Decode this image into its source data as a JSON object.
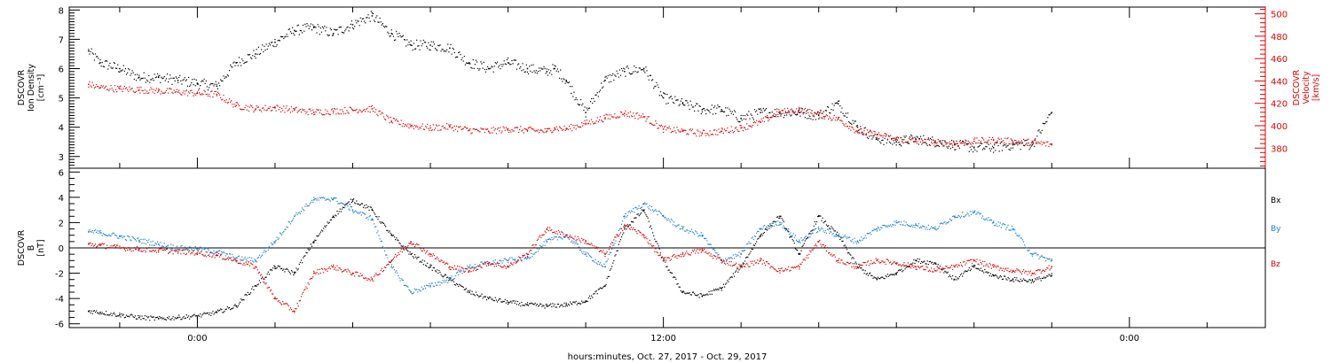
{
  "chart_data": [
    {
      "type": "scatter",
      "panel": "top",
      "left_axis": {
        "lines": [
          "DSCOVR",
          "Ion Density",
          "[cm⁻³]"
        ],
        "ticks": [
          3,
          4,
          5,
          6,
          7,
          8
        ],
        "ylim": [
          2.6,
          8.1
        ]
      },
      "right_axis": {
        "lines": [
          "DSCOVR",
          "Velocity",
          "[km/s]"
        ],
        "ticks": [
          380,
          400,
          420,
          440,
          460,
          480,
          500
        ],
        "ylim": [
          362,
          506
        ]
      },
      "series": [
        {
          "name": "",
          "axis": "left",
          "color": "#000000",
          "x": [
            -2.8,
            -2.5,
            -2.0,
            -1.5,
            -1.0,
            -0.5,
            0.0,
            0.5,
            1.0,
            1.5,
            2.0,
            2.5,
            3.0,
            3.5,
            4.0,
            4.5,
            5.0,
            5.5,
            6.0,
            6.5,
            7.0,
            7.5,
            8.0,
            8.5,
            9.0,
            9.2,
            9.5,
            10.0,
            10.5,
            11.0,
            11.5,
            12.0,
            12.5,
            13.0,
            13.5,
            14.0,
            14.5,
            15.0,
            15.5,
            16.0,
            16.5,
            17.0,
            17.5,
            18.0,
            18.5,
            19.0,
            19.5,
            20.0,
            20.5,
            21.0,
            21.5,
            22.0
          ],
          "y": [
            6.6,
            6.2,
            6.0,
            5.7,
            5.7,
            5.6,
            5.5,
            5.4,
            6.2,
            6.5,
            6.9,
            7.3,
            7.4,
            7.2,
            7.5,
            7.8,
            7.2,
            6.8,
            6.8,
            6.7,
            6.2,
            6.0,
            6.2,
            6.0,
            5.9,
            6.0,
            5.6,
            4.5,
            5.6,
            5.9,
            6.0,
            5.0,
            4.8,
            4.6,
            4.6,
            4.3,
            4.5,
            4.5,
            4.5,
            4.4,
            4.8,
            4.0,
            3.6,
            3.5,
            3.6,
            3.5,
            3.4,
            3.3,
            3.3,
            3.4,
            3.4,
            4.5
          ]
        },
        {
          "name": "",
          "axis": "right",
          "color": "#e00000",
          "x": [
            -2.8,
            -2.5,
            -2.0,
            -1.5,
            -1.0,
            -0.5,
            0.0,
            0.5,
            1.0,
            1.5,
            2.0,
            2.5,
            3.0,
            3.5,
            4.0,
            4.5,
            5.0,
            5.5,
            6.0,
            6.5,
            7.0,
            7.5,
            8.0,
            8.5,
            9.0,
            9.2,
            9.5,
            10.0,
            10.5,
            11.0,
            11.5,
            12.0,
            12.5,
            13.0,
            13.5,
            14.0,
            14.5,
            15.0,
            15.5,
            16.0,
            16.5,
            17.0,
            17.5,
            18.0,
            18.5,
            19.0,
            19.5,
            20.0,
            20.5,
            21.0,
            21.5,
            22.0
          ],
          "y": [
            437,
            434,
            433,
            432,
            431,
            430,
            429,
            428,
            418,
            415,
            416,
            414,
            412,
            413,
            414,
            415,
            404,
            400,
            398,
            399,
            396,
            395,
            397,
            396,
            395,
            398,
            397,
            402,
            407,
            411,
            408,
            397,
            395,
            393,
            395,
            398,
            403,
            412,
            414,
            410,
            406,
            395,
            392,
            388,
            386,
            385,
            384,
            386,
            387,
            386,
            385,
            383
          ]
        }
      ]
    },
    {
      "type": "scatter",
      "panel": "bottom",
      "left_axis": {
        "lines": [
          "DSCOVR",
          "B",
          "[nT]"
        ],
        "ticks": [
          -6,
          -4,
          -2,
          0,
          2,
          4,
          6
        ],
        "ylim": [
          -6.3,
          6.3
        ]
      },
      "zero_line": true,
      "series": [
        {
          "name": "Bx",
          "color": "#000000",
          "x": [
            -2.8,
            -2.5,
            -2.0,
            -1.5,
            -1.0,
            -0.5,
            0.0,
            0.5,
            1.0,
            1.5,
            2.0,
            2.5,
            3.0,
            3.5,
            4.0,
            4.5,
            5.0,
            5.5,
            6.0,
            6.5,
            7.0,
            7.5,
            8.0,
            8.5,
            9.0,
            9.5,
            10.0,
            10.5,
            11.0,
            11.5,
            12.0,
            12.5,
            13.0,
            13.5,
            14.0,
            14.5,
            15.0,
            15.5,
            16.0,
            16.5,
            17.0,
            17.5,
            18.0,
            18.5,
            19.0,
            19.5,
            20.0,
            20.5,
            21.0,
            21.5,
            22.0
          ],
          "y": [
            -5.0,
            -5.1,
            -5.3,
            -5.5,
            -5.6,
            -5.5,
            -5.4,
            -5.1,
            -4.6,
            -3.0,
            -1.5,
            -2.0,
            0.5,
            2.5,
            3.8,
            3.0,
            1.0,
            -0.5,
            -1.5,
            -2.5,
            -3.5,
            -4.0,
            -4.3,
            -4.5,
            -4.6,
            -4.5,
            -4.2,
            -3.0,
            1.5,
            3.0,
            -1.0,
            -3.5,
            -3.8,
            -3.2,
            -1.5,
            1.0,
            2.5,
            -0.5,
            2.5,
            1.0,
            -1.5,
            -2.5,
            -2.0,
            -1.0,
            -1.2,
            -2.5,
            -1.5,
            -2.2,
            -2.5,
            -2.6,
            -2.2
          ]
        },
        {
          "name": "By",
          "color": "#1a7fd4",
          "x": [
            -2.8,
            -2.5,
            -2.0,
            -1.5,
            -1.0,
            -0.5,
            0.0,
            0.5,
            1.0,
            1.5,
            2.0,
            2.5,
            3.0,
            3.5,
            4.0,
            4.5,
            5.0,
            5.5,
            6.0,
            6.5,
            7.0,
            7.5,
            8.0,
            8.5,
            9.0,
            9.5,
            10.0,
            10.5,
            11.0,
            11.5,
            12.0,
            12.5,
            13.0,
            13.5,
            14.0,
            14.5,
            15.0,
            15.5,
            16.0,
            16.5,
            17.0,
            17.5,
            18.0,
            18.5,
            19.0,
            19.5,
            20.0,
            20.5,
            21.0,
            21.5,
            22.0
          ],
          "y": [
            1.3,
            1.2,
            0.9,
            0.6,
            0.3,
            0.0,
            -0.1,
            -0.3,
            -0.8,
            -1.0,
            0.5,
            2.5,
            3.8,
            3.9,
            3.0,
            2.3,
            -1.5,
            -3.5,
            -3.0,
            -2.5,
            -1.5,
            -1.2,
            -1.0,
            -0.8,
            0.5,
            1.0,
            -0.5,
            -1.5,
            2.5,
            3.5,
            2.5,
            1.5,
            1.0,
            -1.0,
            -0.5,
            1.5,
            2.0,
            0.5,
            1.5,
            1.0,
            0.5,
            1.5,
            2.0,
            1.8,
            1.5,
            2.5,
            2.8,
            2.0,
            1.5,
            -0.5,
            -1.0
          ]
        },
        {
          "name": "Bz",
          "color": "#e00000",
          "x": [
            -2.8,
            -2.5,
            -2.0,
            -1.5,
            -1.0,
            -0.5,
            0.0,
            0.5,
            1.0,
            1.5,
            2.0,
            2.5,
            3.0,
            3.5,
            4.0,
            4.5,
            5.0,
            5.5,
            6.0,
            6.5,
            7.0,
            7.5,
            8.0,
            8.5,
            9.0,
            9.5,
            10.0,
            10.5,
            11.0,
            11.5,
            12.0,
            12.5,
            13.0,
            13.5,
            14.0,
            14.5,
            15.0,
            15.5,
            16.0,
            16.5,
            17.0,
            17.5,
            18.0,
            18.5,
            19.0,
            19.5,
            20.0,
            20.5,
            21.0,
            21.5,
            22.0
          ],
          "y": [
            0.3,
            0.2,
            0.0,
            -0.1,
            -0.2,
            -0.3,
            -0.4,
            -0.6,
            -1.0,
            -1.5,
            -4.0,
            -5.0,
            -2.0,
            -1.5,
            -2.0,
            -2.5,
            -1.0,
            0.5,
            -0.5,
            -1.5,
            -1.8,
            -1.2,
            -1.5,
            -0.5,
            1.5,
            1.0,
            0.5,
            -0.5,
            1.8,
            1.0,
            -1.0,
            -0.5,
            -0.2,
            -1.0,
            -1.5,
            -1.0,
            -1.8,
            -1.5,
            0.5,
            -1.0,
            -1.5,
            -1.0,
            -1.2,
            -1.5,
            -1.8,
            -1.5,
            -1.0,
            -1.5,
            -1.8,
            -2.0,
            -1.5
          ]
        }
      ]
    }
  ],
  "x_axis": {
    "xlim": [
      -3.3,
      27.5
    ],
    "major_ticks": [
      0,
      12,
      24
    ],
    "tick_labels": [
      "0:00",
      "12:00",
      "0:00"
    ],
    "minor_step": 2,
    "label": "hours:minutes, Oct. 27, 2017 - Oct. 29, 2017"
  }
}
